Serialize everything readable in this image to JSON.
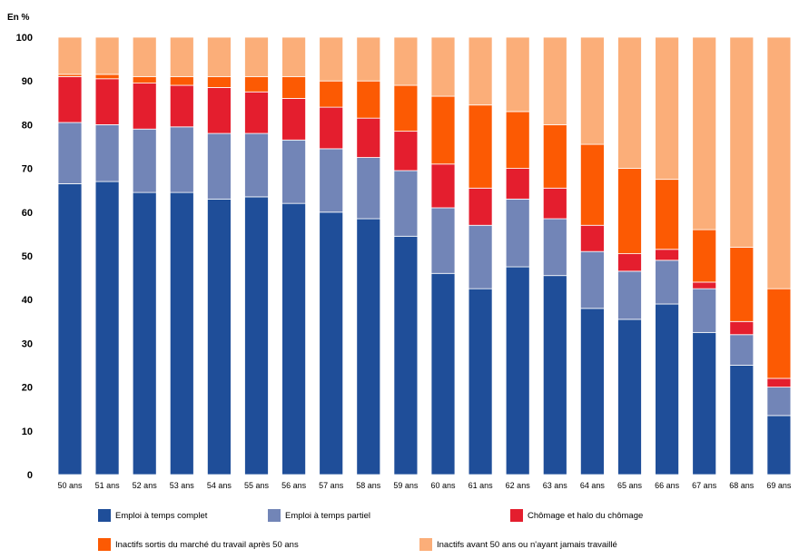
{
  "chart_data": {
    "type": "bar",
    "stacked": true,
    "y_unit_label": "En %",
    "ylim": [
      0,
      100
    ],
    "yticks": [
      0,
      10,
      20,
      30,
      40,
      50,
      60,
      70,
      80,
      90,
      100
    ],
    "grid": false,
    "legend_position": "bottom",
    "categories": [
      "50 ans",
      "51 ans",
      "52 ans",
      "53 ans",
      "54 ans",
      "55 ans",
      "56 ans",
      "57 ans",
      "58 ans",
      "59 ans",
      "60 ans",
      "61 ans",
      "62 ans",
      "63 ans",
      "64 ans",
      "65 ans",
      "66 ans",
      "67 ans",
      "68 ans",
      "69 ans"
    ],
    "series": [
      {
        "name": "Emploi à temps complet",
        "color": "#1f4e99",
        "values": [
          66.5,
          67,
          64.5,
          64.5,
          63,
          63.5,
          62,
          60,
          58.5,
          54.5,
          46,
          42.5,
          47.5,
          45.5,
          38,
          35.5,
          39,
          32.5,
          25,
          13.5
        ]
      },
      {
        "name": "Emploi à temps partiel",
        "color": "#7285b7",
        "values": [
          14,
          13,
          14.5,
          15,
          15,
          14.5,
          14.5,
          14.5,
          14,
          15,
          15,
          14.5,
          15.5,
          13,
          13,
          11,
          10,
          10,
          7,
          6.5
        ]
      },
      {
        "name": "Chômage et halo du chômage",
        "color": "#e41e2e",
        "values": [
          10.5,
          10.5,
          10.5,
          9.5,
          10.5,
          9.5,
          9.5,
          9.5,
          9,
          9,
          10,
          8.5,
          7,
          7,
          6,
          4,
          2.5,
          1.5,
          3,
          2
        ]
      },
      {
        "name": "Inactifs sortis du marché du travail après 50 ans",
        "color": "#fc5a03",
        "values": [
          0.5,
          1,
          1.5,
          2,
          2.5,
          3.5,
          5,
          6,
          8.5,
          10.5,
          15.5,
          19,
          13,
          14.5,
          18.5,
          19.5,
          16,
          12,
          17,
          20.5
        ]
      },
      {
        "name": "Inactifs avant 50 ans ou n'ayant jamais travaillé",
        "color": "#fbae79",
        "values": [
          8.5,
          8.5,
          9,
          9,
          9,
          9,
          9,
          10,
          10,
          11,
          13.5,
          15.5,
          17,
          20,
          24.5,
          30,
          32.5,
          44,
          48,
          57.5
        ]
      }
    ]
  }
}
